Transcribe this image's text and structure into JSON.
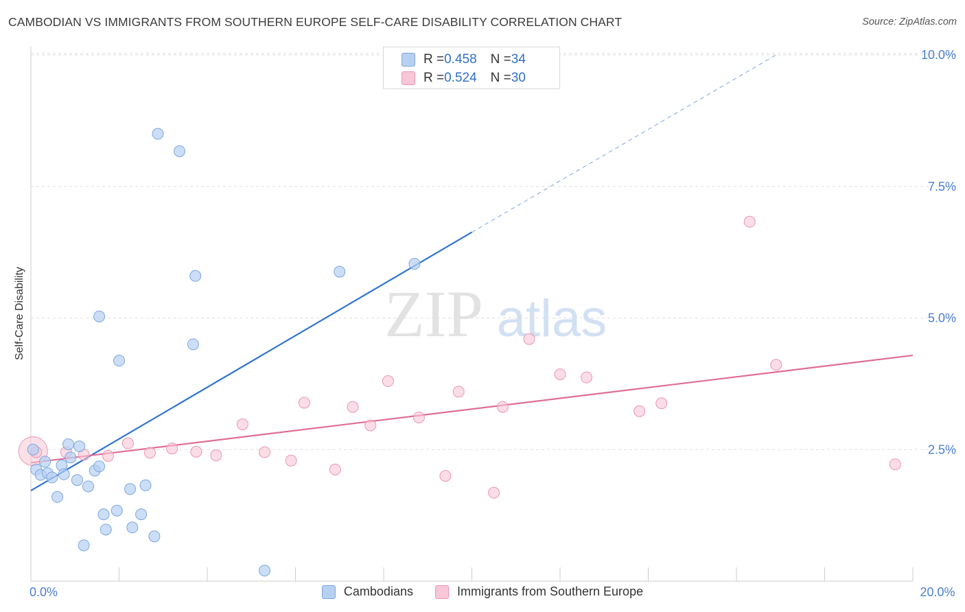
{
  "header": {
    "title": "CAMBODIAN VS IMMIGRANTS FROM SOUTHERN EUROPE SELF-CARE DISABILITY CORRELATION CHART",
    "source": "Source: ZipAtlas.com"
  },
  "watermark": {
    "zip": "ZIP",
    "atlas": "atlas"
  },
  "legend_top": {
    "rows": [
      {
        "r_label": "R = ",
        "r_value": "0.458",
        "n_label": "N = ",
        "n_value": "34"
      },
      {
        "r_label": "R = ",
        "r_value": "0.524",
        "n_label": "N = ",
        "n_value": "30"
      }
    ]
  },
  "colors": {
    "cambodians_fill": "#b7d0f2",
    "cambodians_stroke": "#7aa6df",
    "cambodians_line": "#2f74d0",
    "immigrants_fill": "#f8c6d6",
    "immigrants_stroke": "#e995b2",
    "immigrants_line": "#e06c97",
    "tick_label": "#4a7fcf",
    "grid": "#dddddd"
  },
  "chart_data": {
    "type": "scatter",
    "title": "CAMBODIAN VS IMMIGRANTS FROM SOUTHERN EUROPE SELF-CARE DISABILITY CORRELATION CHART",
    "xlabel": "",
    "ylabel": "Self-Care Disability",
    "xlim": [
      0,
      20
    ],
    "ylim": [
      0,
      10
    ],
    "x_tick_labels": [
      {
        "value": 0,
        "label": "0.0%"
      },
      {
        "value": 20,
        "label": "20.0%"
      }
    ],
    "y_tick_labels": [
      {
        "value": 2.5,
        "label": "2.5%"
      },
      {
        "value": 5.0,
        "label": "5.0%"
      },
      {
        "value": 7.5,
        "label": "7.5%"
      },
      {
        "value": 10.0,
        "label": "10.0%"
      }
    ],
    "grid": "horizontal",
    "legend_placement": "top-center",
    "series": [
      {
        "name": "Cambodians",
        "R": 0.458,
        "N": 34,
        "trend": {
          "x0": 0,
          "y0": 1.72,
          "x1": 10.0,
          "y1": 6.63,
          "dashed_to": {
            "x": 16.9,
            "y": 10.0
          }
        },
        "points": [
          {
            "x": 0.05,
            "y": 2.5
          },
          {
            "x": 0.12,
            "y": 2.12
          },
          {
            "x": 0.22,
            "y": 2.02
          },
          {
            "x": 0.32,
            "y": 2.27
          },
          {
            "x": 0.38,
            "y": 2.05
          },
          {
            "x": 0.48,
            "y": 1.97
          },
          {
            "x": 0.6,
            "y": 1.6
          },
          {
            "x": 0.7,
            "y": 2.2
          },
          {
            "x": 0.75,
            "y": 2.03
          },
          {
            "x": 0.85,
            "y": 2.6
          },
          {
            "x": 0.9,
            "y": 2.35
          },
          {
            "x": 1.05,
            "y": 1.92
          },
          {
            "x": 1.1,
            "y": 2.56
          },
          {
            "x": 1.2,
            "y": 0.68
          },
          {
            "x": 1.3,
            "y": 1.8
          },
          {
            "x": 1.45,
            "y": 2.1
          },
          {
            "x": 1.55,
            "y": 2.18
          },
          {
            "x": 1.55,
            "y": 5.03
          },
          {
            "x": 1.65,
            "y": 1.27
          },
          {
            "x": 1.7,
            "y": 0.98
          },
          {
            "x": 1.95,
            "y": 1.34
          },
          {
            "x": 2.0,
            "y": 4.19
          },
          {
            "x": 2.25,
            "y": 1.75
          },
          {
            "x": 2.3,
            "y": 1.02
          },
          {
            "x": 2.5,
            "y": 1.27
          },
          {
            "x": 2.6,
            "y": 1.82
          },
          {
            "x": 2.8,
            "y": 0.85
          },
          {
            "x": 2.88,
            "y": 8.5
          },
          {
            "x": 3.37,
            "y": 8.17
          },
          {
            "x": 3.68,
            "y": 4.5
          },
          {
            "x": 3.73,
            "y": 5.8
          },
          {
            "x": 5.3,
            "y": 0.2
          },
          {
            "x": 7.0,
            "y": 5.88
          },
          {
            "x": 8.7,
            "y": 6.03
          }
        ]
      },
      {
        "name": "Immigrants from Southern Europe",
        "R": 0.524,
        "N": 30,
        "trend": {
          "x0": 0,
          "y0": 2.25,
          "x1": 20,
          "y1": 4.29
        },
        "points": [
          {
            "x": 0.12,
            "y": 2.45
          },
          {
            "x": 0.8,
            "y": 2.45
          },
          {
            "x": 1.2,
            "y": 2.4
          },
          {
            "x": 1.75,
            "y": 2.38
          },
          {
            "x": 2.2,
            "y": 2.62
          },
          {
            "x": 2.7,
            "y": 2.44
          },
          {
            "x": 3.2,
            "y": 2.52
          },
          {
            "x": 3.75,
            "y": 2.46
          },
          {
            "x": 4.2,
            "y": 2.39
          },
          {
            "x": 4.8,
            "y": 2.98
          },
          {
            "x": 5.3,
            "y": 2.45
          },
          {
            "x": 5.9,
            "y": 2.29
          },
          {
            "x": 6.2,
            "y": 3.39
          },
          {
            "x": 6.9,
            "y": 2.12
          },
          {
            "x": 7.3,
            "y": 3.31
          },
          {
            "x": 7.7,
            "y": 2.96
          },
          {
            "x": 8.1,
            "y": 3.8
          },
          {
            "x": 8.8,
            "y": 3.11
          },
          {
            "x": 9.4,
            "y": 2.0
          },
          {
            "x": 9.7,
            "y": 3.6
          },
          {
            "x": 10.5,
            "y": 1.68
          },
          {
            "x": 10.7,
            "y": 3.31
          },
          {
            "x": 11.3,
            "y": 4.6
          },
          {
            "x": 12.0,
            "y": 3.93
          },
          {
            "x": 12.6,
            "y": 3.87
          },
          {
            "x": 13.8,
            "y": 3.23
          },
          {
            "x": 14.3,
            "y": 3.38
          },
          {
            "x": 16.3,
            "y": 6.83
          },
          {
            "x": 16.9,
            "y": 4.11
          },
          {
            "x": 19.6,
            "y": 2.22
          }
        ]
      }
    ]
  },
  "legend_bottom": {
    "items": [
      {
        "label": "Cambodians"
      },
      {
        "label": "Immigrants from Southern Europe"
      }
    ]
  }
}
